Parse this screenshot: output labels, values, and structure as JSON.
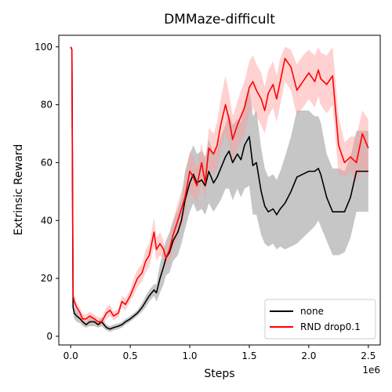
{
  "chart_data": {
    "type": "line",
    "title": "DMMaze-difficult",
    "xlabel": "Steps",
    "ylabel": "Extrinsic Reward",
    "x_offset_label": "1e6",
    "xlim": [
      -0.1,
      2.6
    ],
    "ylim": [
      -3,
      104
    ],
    "xticks": [
      0.0,
      0.5,
      1.0,
      1.5,
      2.0,
      2.5
    ],
    "xtick_labels": [
      "0.0",
      "0.5",
      "1.0",
      "1.5",
      "2.0",
      "2.5"
    ],
    "yticks": [
      0,
      20,
      40,
      60,
      80,
      100
    ],
    "ytick_labels": [
      "0",
      "20",
      "40",
      "60",
      "80",
      "100"
    ],
    "grid": false,
    "legend_position": "bottom-right",
    "series": [
      {
        "name": "none",
        "color": "#000000",
        "band_color": "#808080",
        "x": [
          0.0,
          0.01,
          0.02,
          0.03,
          0.05,
          0.08,
          0.1,
          0.13,
          0.16,
          0.2,
          0.23,
          0.26,
          0.3,
          0.33,
          0.36,
          0.4,
          0.43,
          0.46,
          0.5,
          0.53,
          0.56,
          0.6,
          0.63,
          0.66,
          0.7,
          0.72,
          0.75,
          0.78,
          0.8,
          0.83,
          0.86,
          0.9,
          0.93,
          0.96,
          1.0,
          1.03,
          1.06,
          1.1,
          1.13,
          1.16,
          1.2,
          1.23,
          1.26,
          1.3,
          1.33,
          1.36,
          1.4,
          1.43,
          1.46,
          1.5,
          1.53,
          1.56,
          1.6,
          1.63,
          1.66,
          1.7,
          1.73,
          1.76,
          1.8,
          1.85,
          1.9,
          1.95,
          2.0,
          2.05,
          2.08,
          2.1,
          2.15,
          2.2,
          2.25,
          2.3,
          2.35,
          2.4,
          2.45,
          2.5
        ],
        "y": [
          100,
          99,
          10,
          8,
          7,
          6,
          5,
          4,
          5,
          5,
          4,
          5,
          3,
          2.5,
          3,
          3.5,
          4,
          5,
          6,
          7,
          8,
          10,
          12,
          14,
          16,
          15,
          20,
          24,
          27,
          29,
          33,
          36,
          40,
          47,
          53,
          56,
          53,
          54,
          52,
          57,
          53,
          55,
          58,
          62,
          64,
          60,
          63,
          61,
          66,
          69,
          59,
          60,
          50,
          45,
          43,
          44,
          42,
          44,
          46,
          50,
          55,
          56,
          57,
          57,
          58,
          56,
          48,
          43,
          43,
          43,
          48,
          57,
          57,
          57
        ],
        "lower": [
          100,
          99,
          8,
          6,
          5,
          4.5,
          3.5,
          3,
          3.5,
          3.5,
          3,
          3.5,
          2,
          1.5,
          2,
          2.5,
          3,
          4,
          5,
          6,
          7,
          8.5,
          10,
          12,
          14,
          12,
          15,
          18,
          21,
          22,
          26,
          28,
          32,
          37,
          43,
          46,
          43,
          44,
          42,
          46,
          43,
          45,
          47,
          51,
          51,
          47,
          51,
          48,
          51,
          52,
          42,
          42,
          35,
          32,
          31,
          32,
          30,
          31,
          30,
          31,
          32,
          34,
          36,
          38,
          40,
          38,
          33,
          28,
          28,
          29,
          34,
          43,
          43,
          43
        ],
        "upper": [
          100,
          99,
          12,
          10,
          9,
          7.5,
          6.5,
          5,
          6.5,
          6.5,
          5,
          6.5,
          4,
          3.5,
          4,
          4.5,
          5,
          6,
          7,
          8,
          9,
          11.5,
          14,
          16,
          18,
          18,
          25,
          30,
          33,
          36,
          40,
          44,
          48,
          57,
          63,
          66,
          63,
          64,
          62,
          68,
          63,
          65,
          69,
          73,
          77,
          73,
          75,
          74,
          81,
          86,
          76,
          78,
          65,
          58,
          55,
          56,
          54,
          57,
          62,
          69,
          78,
          78,
          78,
          76,
          76,
          74,
          63,
          58,
          58,
          57,
          62,
          71,
          71,
          71
        ]
      },
      {
        "name": "RND drop0.1",
        "color": "#ff0000",
        "band_color": "#ff9999",
        "x": [
          0.0,
          0.01,
          0.02,
          0.03,
          0.05,
          0.08,
          0.1,
          0.13,
          0.16,
          0.2,
          0.23,
          0.26,
          0.3,
          0.33,
          0.36,
          0.4,
          0.43,
          0.46,
          0.5,
          0.53,
          0.56,
          0.6,
          0.63,
          0.66,
          0.7,
          0.72,
          0.75,
          0.78,
          0.8,
          0.83,
          0.86,
          0.9,
          0.93,
          0.96,
          1.0,
          1.03,
          1.06,
          1.1,
          1.13,
          1.16,
          1.2,
          1.23,
          1.26,
          1.3,
          1.33,
          1.36,
          1.4,
          1.43,
          1.46,
          1.5,
          1.53,
          1.56,
          1.6,
          1.63,
          1.66,
          1.7,
          1.73,
          1.76,
          1.8,
          1.85,
          1.9,
          1.95,
          2.0,
          2.05,
          2.08,
          2.1,
          2.15,
          2.2,
          2.25,
          2.3,
          2.35,
          2.4,
          2.45,
          2.5
        ],
        "y": [
          100,
          99,
          14,
          12,
          10,
          8,
          6,
          6,
          7,
          6,
          5,
          5,
          8,
          9,
          7,
          8,
          12,
          11,
          14,
          17,
          20,
          22,
          26,
          28,
          36,
          30,
          32,
          30,
          27,
          30,
          35,
          40,
          44,
          48,
          57,
          55,
          52,
          60,
          53,
          65,
          63,
          66,
          73,
          80,
          75,
          68,
          73,
          76,
          79,
          86,
          88,
          85,
          82,
          78,
          84,
          87,
          82,
          88,
          96,
          93,
          85,
          88,
          91,
          88,
          92,
          89,
          87,
          90,
          66,
          60,
          62,
          60,
          70,
          65
        ],
        "lower": [
          100,
          99,
          12,
          10,
          8,
          6.5,
          4.5,
          4.5,
          5.5,
          4.5,
          3.5,
          3.5,
          6,
          7,
          5.5,
          6.5,
          10,
          9,
          12,
          14,
          17,
          19,
          22,
          24,
          31,
          26,
          28,
          27,
          24,
          26,
          30,
          34,
          38,
          42,
          50,
          48,
          46,
          53,
          47,
          58,
          56,
          58,
          64,
          70,
          66,
          60,
          65,
          67,
          70,
          77,
          79,
          76,
          73,
          70,
          76,
          79,
          74,
          80,
          88,
          85,
          76,
          79,
          82,
          79,
          83,
          80,
          77,
          80,
          56,
          55,
          57,
          53,
          58,
          55
        ],
        "upper": [
          100,
          99,
          16,
          14,
          12,
          9.5,
          7.5,
          7.5,
          8.5,
          7.5,
          6.5,
          6.5,
          10,
          11,
          8.5,
          9.5,
          14,
          13,
          16,
          20,
          23,
          25,
          30,
          32,
          41,
          34,
          36,
          33,
          30,
          34,
          40,
          46,
          50,
          54,
          64,
          62,
          58,
          67,
          59,
          72,
          70,
          74,
          82,
          90,
          84,
          76,
          81,
          85,
          88,
          95,
          97,
          94,
          91,
          86,
          92,
          95,
          90,
          96,
          100,
          99,
          94,
          97,
          99,
          97,
          100,
          98,
          97,
          100,
          76,
          67,
          69,
          69,
          78,
          75
        ]
      }
    ]
  }
}
